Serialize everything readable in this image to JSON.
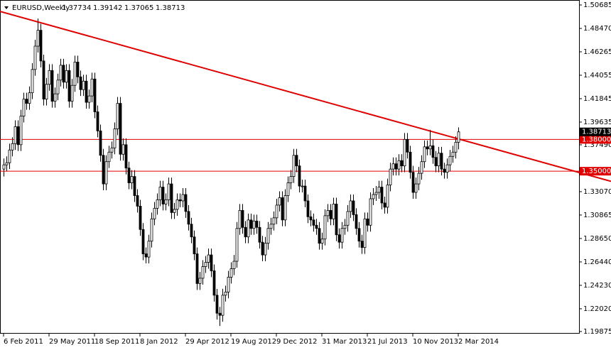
{
  "chart_data": {
    "type": "candlestick",
    "series": [
      {
        "name": "EURUSD,Weekly",
        "open": [
          1.352,
          1.356,
          1.358,
          1.37,
          1.376,
          1.392,
          1.375,
          1.402,
          1.418,
          1.414,
          1.424,
          1.446,
          1.468,
          1.483,
          1.454,
          1.418,
          1.432,
          1.445,
          1.416,
          1.423,
          1.436,
          1.45,
          1.434,
          1.445,
          1.416,
          1.431,
          1.453,
          1.439,
          1.427,
          1.435,
          1.415,
          1.421,
          1.437,
          1.406,
          1.388,
          1.365,
          1.338,
          1.359,
          1.368,
          1.372,
          1.39,
          1.414,
          1.366,
          1.375,
          1.353,
          1.339,
          1.345,
          1.327,
          1.317,
          1.295,
          1.272,
          1.269,
          1.284,
          1.305,
          1.315,
          1.323,
          1.335,
          1.319,
          1.323,
          1.338,
          1.311,
          1.314,
          1.323,
          1.322,
          1.328,
          1.312,
          1.3,
          1.288,
          1.272,
          1.244,
          1.249,
          1.26,
          1.264,
          1.271,
          1.256,
          1.233,
          1.216,
          1.214,
          1.233,
          1.236,
          1.25,
          1.258,
          1.265,
          1.296,
          1.313,
          1.297,
          1.288,
          1.304,
          1.296,
          1.303,
          1.297,
          1.283,
          1.271,
          1.282,
          1.296,
          1.3,
          1.306,
          1.318,
          1.325,
          1.304,
          1.327,
          1.339,
          1.345,
          1.365,
          1.355,
          1.336,
          1.336,
          1.322,
          1.307,
          1.304,
          1.299,
          1.296,
          1.282,
          1.286,
          1.308,
          1.313,
          1.305,
          1.319,
          1.29,
          1.283,
          1.296,
          1.299,
          1.312,
          1.322,
          1.309,
          1.296,
          1.284,
          1.278,
          1.305,
          1.299,
          1.324,
          1.328,
          1.33,
          1.335,
          1.32,
          1.316,
          1.337,
          1.352,
          1.357,
          1.352,
          1.36,
          1.355,
          1.38,
          1.368,
          1.349,
          1.33,
          1.338,
          1.348,
          1.359,
          1.373,
          1.371,
          1.374,
          1.363,
          1.355,
          1.367,
          1.352,
          1.349,
          1.356,
          1.364,
          1.368,
          1.37734
        ],
        "high": [
          1.362,
          1.364,
          1.376,
          1.382,
          1.398,
          1.398,
          1.408,
          1.424,
          1.424,
          1.43,
          1.452,
          1.474,
          1.494,
          1.489,
          1.46,
          1.438,
          1.451,
          1.451,
          1.429,
          1.442,
          1.456,
          1.456,
          1.451,
          1.451,
          1.437,
          1.459,
          1.459,
          1.445,
          1.441,
          1.441,
          1.427,
          1.443,
          1.443,
          1.412,
          1.394,
          1.371,
          1.365,
          1.374,
          1.378,
          1.396,
          1.42,
          1.42,
          1.381,
          1.381,
          1.359,
          1.351,
          1.351,
          1.333,
          1.323,
          1.301,
          1.278,
          1.29,
          1.311,
          1.321,
          1.329,
          1.341,
          1.341,
          1.329,
          1.344,
          1.344,
          1.32,
          1.329,
          1.329,
          1.334,
          1.334,
          1.318,
          1.306,
          1.294,
          1.278,
          1.255,
          1.266,
          1.27,
          1.277,
          1.277,
          1.262,
          1.239,
          1.222,
          1.239,
          1.242,
          1.256,
          1.264,
          1.271,
          1.302,
          1.319,
          1.319,
          1.303,
          1.31,
          1.31,
          1.309,
          1.309,
          1.303,
          1.289,
          1.288,
          1.302,
          1.306,
          1.312,
          1.324,
          1.331,
          1.331,
          1.333,
          1.345,
          1.351,
          1.371,
          1.371,
          1.361,
          1.342,
          1.342,
          1.328,
          1.313,
          1.31,
          1.305,
          1.302,
          1.292,
          1.314,
          1.319,
          1.319,
          1.325,
          1.325,
          1.296,
          1.302,
          1.305,
          1.318,
          1.328,
          1.328,
          1.315,
          1.302,
          1.29,
          1.311,
          1.311,
          1.33,
          1.334,
          1.336,
          1.341,
          1.341,
          1.326,
          1.343,
          1.358,
          1.363,
          1.363,
          1.366,
          1.366,
          1.386,
          1.386,
          1.374,
          1.355,
          1.344,
          1.354,
          1.365,
          1.379,
          1.379,
          1.389,
          1.38,
          1.369,
          1.373,
          1.373,
          1.358,
          1.362,
          1.37,
          1.374,
          1.383,
          1.39142
        ],
        "low": [
          1.345,
          1.35,
          1.352,
          1.364,
          1.37,
          1.369,
          1.369,
          1.396,
          1.408,
          1.408,
          1.418,
          1.44,
          1.462,
          1.448,
          1.412,
          1.412,
          1.426,
          1.41,
          1.41,
          1.417,
          1.43,
          1.428,
          1.428,
          1.41,
          1.41,
          1.425,
          1.433,
          1.421,
          1.421,
          1.409,
          1.409,
          1.415,
          1.4,
          1.382,
          1.359,
          1.332,
          1.332,
          1.353,
          1.362,
          1.366,
          1.384,
          1.36,
          1.36,
          1.347,
          1.333,
          1.333,
          1.321,
          1.311,
          1.289,
          1.266,
          1.263,
          1.263,
          1.278,
          1.299,
          1.309,
          1.317,
          1.313,
          1.313,
          1.317,
          1.305,
          1.305,
          1.308,
          1.316,
          1.316,
          1.306,
          1.294,
          1.282,
          1.266,
          1.238,
          1.238,
          1.243,
          1.254,
          1.258,
          1.25,
          1.227,
          1.21,
          1.204,
          1.208,
          1.227,
          1.23,
          1.244,
          1.252,
          1.259,
          1.29,
          1.291,
          1.282,
          1.282,
          1.29,
          1.29,
          1.291,
          1.277,
          1.265,
          1.265,
          1.276,
          1.29,
          1.294,
          1.3,
          1.312,
          1.298,
          1.298,
          1.321,
          1.333,
          1.339,
          1.349,
          1.33,
          1.33,
          1.316,
          1.301,
          1.298,
          1.293,
          1.29,
          1.276,
          1.276,
          1.28,
          1.302,
          1.299,
          1.299,
          1.284,
          1.277,
          1.277,
          1.29,
          1.293,
          1.306,
          1.303,
          1.29,
          1.278,
          1.272,
          1.272,
          1.293,
          1.293,
          1.318,
          1.322,
          1.324,
          1.314,
          1.31,
          1.31,
          1.331,
          1.346,
          1.346,
          1.346,
          1.349,
          1.349,
          1.362,
          1.343,
          1.324,
          1.324,
          1.332,
          1.342,
          1.353,
          1.365,
          1.365,
          1.357,
          1.349,
          1.349,
          1.346,
          1.343,
          1.343,
          1.35,
          1.358,
          1.362,
          1.37065
        ],
        "close": [
          1.356,
          1.358,
          1.37,
          1.376,
          1.392,
          1.375,
          1.402,
          1.418,
          1.414,
          1.424,
          1.446,
          1.468,
          1.483,
          1.454,
          1.418,
          1.432,
          1.445,
          1.416,
          1.423,
          1.436,
          1.45,
          1.434,
          1.445,
          1.416,
          1.431,
          1.453,
          1.439,
          1.427,
          1.435,
          1.415,
          1.421,
          1.437,
          1.406,
          1.388,
          1.365,
          1.338,
          1.359,
          1.368,
          1.372,
          1.39,
          1.414,
          1.366,
          1.375,
          1.353,
          1.339,
          1.345,
          1.327,
          1.317,
          1.295,
          1.272,
          1.269,
          1.284,
          1.305,
          1.315,
          1.323,
          1.335,
          1.319,
          1.323,
          1.338,
          1.311,
          1.314,
          1.323,
          1.322,
          1.328,
          1.312,
          1.3,
          1.288,
          1.272,
          1.244,
          1.249,
          1.26,
          1.264,
          1.271,
          1.256,
          1.233,
          1.216,
          1.214,
          1.233,
          1.236,
          1.25,
          1.258,
          1.265,
          1.296,
          1.313,
          1.297,
          1.288,
          1.304,
          1.296,
          1.303,
          1.297,
          1.283,
          1.271,
          1.282,
          1.296,
          1.3,
          1.306,
          1.318,
          1.325,
          1.304,
          1.327,
          1.339,
          1.345,
          1.365,
          1.355,
          1.336,
          1.336,
          1.322,
          1.307,
          1.304,
          1.299,
          1.296,
          1.282,
          1.286,
          1.308,
          1.313,
          1.305,
          1.319,
          1.29,
          1.283,
          1.296,
          1.299,
          1.312,
          1.322,
          1.309,
          1.296,
          1.284,
          1.278,
          1.305,
          1.299,
          1.324,
          1.328,
          1.33,
          1.335,
          1.32,
          1.316,
          1.337,
          1.352,
          1.357,
          1.352,
          1.36,
          1.355,
          1.38,
          1.368,
          1.349,
          1.33,
          1.338,
          1.348,
          1.359,
          1.373,
          1.371,
          1.374,
          1.363,
          1.355,
          1.367,
          1.352,
          1.349,
          1.356,
          1.364,
          1.368,
          1.37734,
          1.38713
        ]
      }
    ],
    "x": [
      "6 Feb 2011",
      null,
      null,
      null,
      null,
      null,
      null,
      null,
      null,
      null,
      null,
      null,
      null,
      null,
      null,
      null,
      "29 May 2011",
      null,
      null,
      null,
      null,
      null,
      null,
      null,
      null,
      null,
      null,
      null,
      null,
      null,
      null,
      null,
      "18 Sep 2011",
      null,
      null,
      null,
      null,
      null,
      null,
      null,
      null,
      null,
      null,
      null,
      null,
      null,
      null,
      null,
      "8 Jan 2012",
      null,
      null,
      null,
      null,
      null,
      null,
      null,
      null,
      null,
      null,
      null,
      null,
      null,
      null,
      null,
      "29 Apr 2012",
      null,
      null,
      null,
      null,
      null,
      null,
      null,
      null,
      null,
      null,
      null,
      null,
      null,
      null,
      null,
      "19 Aug 2012",
      null,
      null,
      null,
      null,
      null,
      null,
      null,
      null,
      null,
      null,
      null,
      null,
      null,
      null,
      null,
      "9 Dec 2012",
      null,
      null,
      null,
      null,
      null,
      null,
      null,
      null,
      null,
      null,
      null,
      null,
      null,
      null,
      null,
      "31 Mar 2013",
      null,
      null,
      null,
      null,
      null,
      null,
      null,
      null,
      null,
      null,
      null,
      null,
      null,
      null,
      null,
      "21 Jul 2013",
      null,
      null,
      null,
      null,
      null,
      null,
      null,
      null,
      null,
      null,
      null,
      null,
      null,
      null,
      null,
      "10 Nov 2013",
      null,
      null,
      null,
      null,
      null,
      null,
      null,
      null,
      null,
      null,
      null,
      null,
      null,
      null,
      null,
      "2 Mar 2014"
    ],
    "ylim": [
      1.1967,
      1.5102
    ],
    "yticks": [
      1.50685,
      {
        "value": 1.4847,
        "label": "1.48470"
      },
      1.46265,
      1.44055,
      1.41845,
      1.39635,
      {
        "value": 1.3749,
        "label": "1.37490"
      },
      {
        "value": 1.3307,
        "label": "1.33070"
      },
      1.30865,
      {
        "value": 1.2865,
        "label": "1.28650"
      },
      {
        "value": 1.2644,
        "label": "1.26440"
      },
      {
        "value": 1.2423,
        "label": "1.24230"
      },
      {
        "value": 1.2202,
        "label": "1.22020"
      },
      1.19875
    ],
    "grid": false,
    "up_color": "#ffffff",
    "down_color": "#000000",
    "wick_color": "#000000",
    "hlines": [
      {
        "value": 1.38,
        "label": "1.38000"
      },
      {
        "value": 1.35,
        "label": "1.35000"
      }
    ],
    "hline_color": "#e00000",
    "trendline": {
      "values": [
        1.5008,
        1.3488
      ],
      "color": "#e00000"
    },
    "last_price_color": "#000000"
  }
}
